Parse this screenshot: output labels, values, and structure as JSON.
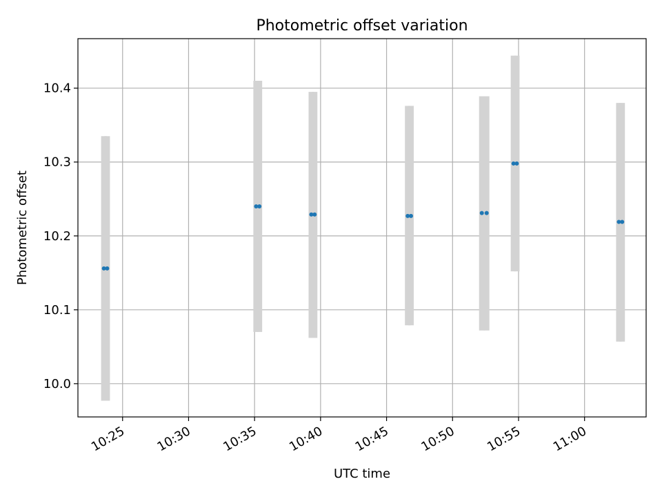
{
  "chart_data": {
    "type": "scatter",
    "title": "Photometric offset variation",
    "xlabel": "UTC time",
    "ylabel": "Photometric offset",
    "x_axis": "time",
    "x_ticks": [
      "10:25",
      "10:30",
      "10:35",
      "10:40",
      "10:45",
      "10:50",
      "10:55",
      "11:00"
    ],
    "y_ticks": [
      "10.0",
      "10.1",
      "10.2",
      "10.3",
      "10.4"
    ],
    "xlim": [
      "10:21:37",
      "11:04:40"
    ],
    "ylim": [
      9.955,
      10.467
    ],
    "grid": true,
    "colors": {
      "point": "#1f77b4",
      "errorbar": "#d3d3d3",
      "grid": "#b0b0b0"
    },
    "points": [
      {
        "x": "10:23:35",
        "y": 10.156,
        "ylow": 9.977,
        "yhigh": 10.335
      },
      {
        "x": "10:23:50",
        "y": 10.156,
        "ylow": 9.977,
        "yhigh": 10.335
      },
      {
        "x": "10:35:07",
        "y": 10.24,
        "ylow": 10.07,
        "yhigh": 10.41
      },
      {
        "x": "10:35:22",
        "y": 10.24,
        "ylow": 10.07,
        "yhigh": 10.41
      },
      {
        "x": "10:39:18",
        "y": 10.229,
        "ylow": 10.062,
        "yhigh": 10.395
      },
      {
        "x": "10:39:33",
        "y": 10.229,
        "ylow": 10.062,
        "yhigh": 10.395
      },
      {
        "x": "10:46:36",
        "y": 10.227,
        "ylow": 10.079,
        "yhigh": 10.376
      },
      {
        "x": "10:46:51",
        "y": 10.227,
        "ylow": 10.079,
        "yhigh": 10.376
      },
      {
        "x": "10:52:13",
        "y": 10.231,
        "ylow": 10.072,
        "yhigh": 10.389
      },
      {
        "x": "10:52:35",
        "y": 10.231,
        "ylow": 10.072,
        "yhigh": 10.389
      },
      {
        "x": "10:54:37",
        "y": 10.298,
        "ylow": 10.152,
        "yhigh": 10.444
      },
      {
        "x": "10:54:52",
        "y": 10.298,
        "ylow": 10.152,
        "yhigh": 10.444
      },
      {
        "x": "11:02:36",
        "y": 10.219,
        "ylow": 10.057,
        "yhigh": 10.38
      },
      {
        "x": "11:02:51",
        "y": 10.219,
        "ylow": 10.057,
        "yhigh": 10.38
      }
    ]
  }
}
